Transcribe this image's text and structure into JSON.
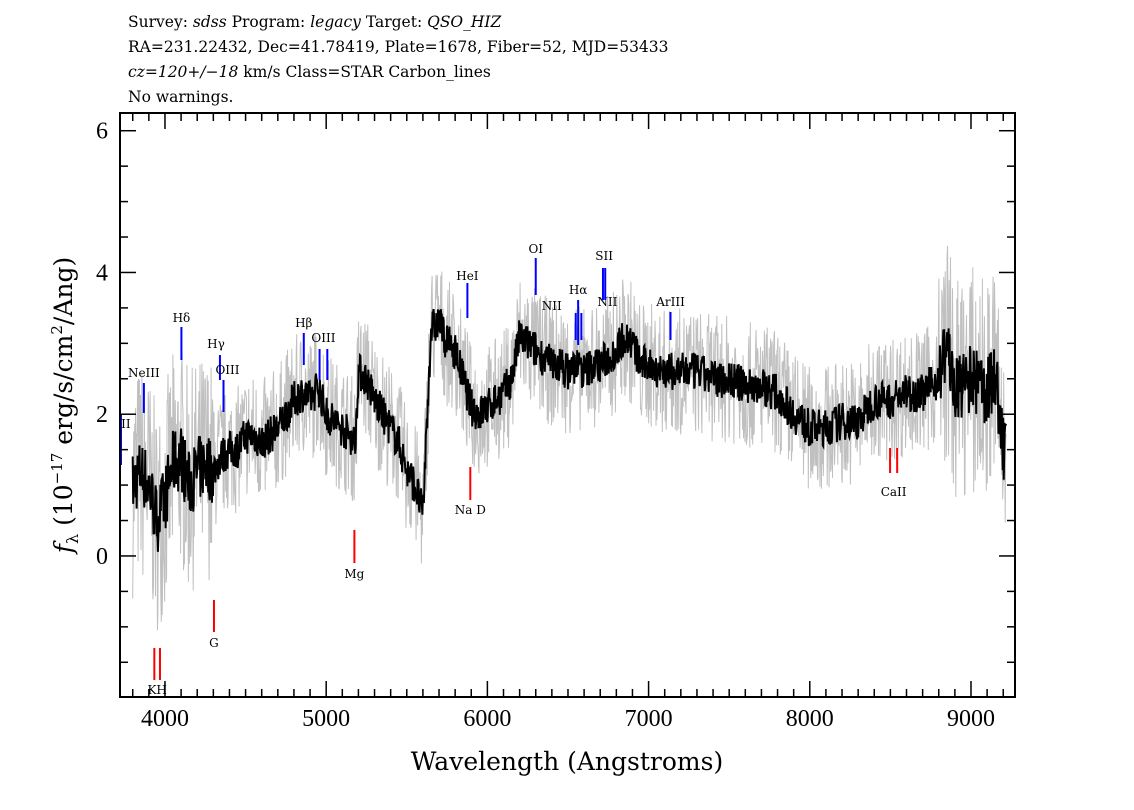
{
  "header": {
    "line1": {
      "survey_label": "Survey: ",
      "survey": "sdss",
      "program_label": " Program: ",
      "program": "legacy",
      "target_label": " Target: ",
      "target": "QSO_HIZ"
    },
    "line2": "RA=231.22432, Dec=41.78419, Plate=1678, Fiber=52, MJD=53433",
    "line3": {
      "cz": "cz=120+/−18",
      "rest": " km/s Class=STAR Carbon_lines"
    },
    "line4": "No warnings."
  },
  "chart_data": {
    "type": "line",
    "xlabel": "Wavelength (Angstroms)",
    "ylabel": "f_λ (10^-17 erg/s/cm^2/Ang)",
    "xlim": [
      3721,
      9273
    ],
    "ylim": [
      -1.99,
      6.25
    ],
    "xticks": [
      4000,
      5000,
      6000,
      7000,
      8000,
      9000
    ],
    "yticks": [
      0,
      2,
      4,
      6
    ],
    "grid": false,
    "colors": {
      "smoothed": "#000000",
      "raw": "#c0c0c0",
      "emission": "#0000ff",
      "absorption": "#ff0000"
    },
    "spectrum": {
      "wavelength": [
        3800,
        3850,
        3900,
        3950,
        4000,
        4050,
        4100,
        4150,
        4200,
        4250,
        4300,
        4350,
        4400,
        4450,
        4500,
        4550,
        4600,
        4650,
        4700,
        4750,
        4800,
        4850,
        4900,
        4950,
        5000,
        5050,
        5100,
        5150,
        5180,
        5200,
        5250,
        5300,
        5350,
        5400,
        5450,
        5500,
        5550,
        5600,
        5650,
        5700,
        5750,
        5800,
        5850,
        5900,
        5950,
        6000,
        6050,
        6100,
        6150,
        6200,
        6250,
        6300,
        6350,
        6400,
        6450,
        6500,
        6550,
        6600,
        6650,
        6700,
        6750,
        6800,
        6850,
        6900,
        6950,
        7000,
        7100,
        7200,
        7300,
        7400,
        7500,
        7600,
        7700,
        7800,
        7900,
        8000,
        8100,
        8200,
        8300,
        8400,
        8500,
        8600,
        8700,
        8800,
        8850,
        8900,
        9000,
        9100,
        9150,
        9200
      ],
      "flux": [
        1.0,
        1.2,
        1.0,
        0.5,
        0.8,
        1.3,
        1.4,
        1.0,
        1.2,
        1.3,
        1.2,
        1.4,
        1.5,
        1.5,
        1.7,
        1.7,
        1.6,
        1.7,
        1.8,
        2.0,
        2.2,
        2.3,
        2.2,
        2.4,
        2.0,
        1.9,
        1.8,
        1.7,
        1.6,
        2.6,
        2.5,
        2.2,
        2.0,
        1.8,
        1.6,
        1.2,
        1.0,
        0.6,
        3.2,
        3.3,
        3.0,
        2.9,
        2.5,
        2.1,
        2.0,
        2.1,
        2.2,
        2.3,
        2.5,
        3.1,
        3.0,
        2.9,
        2.8,
        2.7,
        2.7,
        2.6,
        2.7,
        2.6,
        2.7,
        2.7,
        2.8,
        2.9,
        3.1,
        3.0,
        2.7,
        2.7,
        2.6,
        2.6,
        2.6,
        2.5,
        2.5,
        2.4,
        2.4,
        2.3,
        2.0,
        1.8,
        1.8,
        1.9,
        1.9,
        2.2,
        2.2,
        2.3,
        2.3,
        2.5,
        3.0,
        2.3,
        2.5,
        2.3,
        2.6,
        1.5
      ]
    },
    "emission_lines": [
      {
        "label": "OII",
        "wavelength": [
          3727
        ]
      },
      {
        "label": "NeIII",
        "wavelength": [
          3869
        ]
      },
      {
        "label": "Hδ",
        "wavelength": [
          4102
        ]
      },
      {
        "label": "Hγ",
        "wavelength": [
          4341
        ]
      },
      {
        "label": "OIII",
        "wavelength": [
          4363
        ]
      },
      {
        "label": "Hβ",
        "wavelength": [
          4861
        ]
      },
      {
        "label": "OIII",
        "wavelength": [
          4959,
          5007
        ]
      },
      {
        "label": "HeI",
        "wavelength": [
          5876
        ]
      },
      {
        "label": "OI",
        "wavelength": [
          6300
        ]
      },
      {
        "label": "NII",
        "wavelength": [
          6548
        ]
      },
      {
        "label": "Hα",
        "wavelength": [
          6563
        ]
      },
      {
        "label": "NII",
        "wavelength": [
          6583
        ]
      },
      {
        "label": "SII",
        "wavelength": [
          6717,
          6731
        ]
      },
      {
        "label": "ArIII",
        "wavelength": [
          7136
        ]
      }
    ],
    "absorption_lines": [
      {
        "label": "KH",
        "wavelength": [
          3934,
          3969
        ]
      },
      {
        "label": "G",
        "wavelength": [
          4304
        ]
      },
      {
        "label": "Mg",
        "wavelength": [
          5175
        ]
      },
      {
        "label": "Na D",
        "wavelength": [
          5894
        ]
      },
      {
        "label": "CaII",
        "wavelength": [
          8498,
          8542
        ]
      }
    ]
  }
}
